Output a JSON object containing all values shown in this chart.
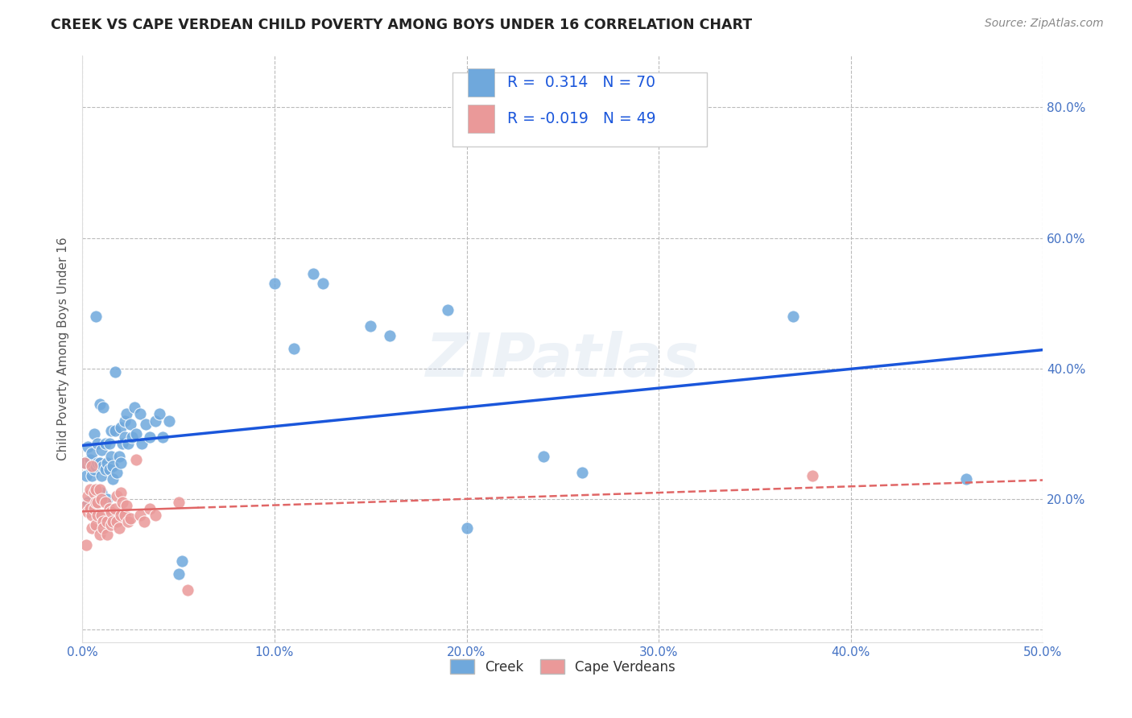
{
  "title": "CREEK VS CAPE VERDEAN CHILD POVERTY AMONG BOYS UNDER 16 CORRELATION CHART",
  "source": "Source: ZipAtlas.com",
  "ylabel": "Child Poverty Among Boys Under 16",
  "watermark": "ZIPatlas",
  "creek_R": 0.314,
  "creek_N": 70,
  "cape_R": -0.019,
  "cape_N": 49,
  "xlim": [
    0.0,
    0.5
  ],
  "ylim": [
    -0.02,
    0.88
  ],
  "xticks": [
    0.0,
    0.1,
    0.2,
    0.3,
    0.4,
    0.5
  ],
  "yticks": [
    0.0,
    0.2,
    0.4,
    0.6,
    0.8
  ],
  "xtick_labels": [
    "0.0%",
    "10.0%",
    "20.0%",
    "30.0%",
    "40.0%",
    "50.0%"
  ],
  "ytick_labels": [
    "",
    "20.0%",
    "40.0%",
    "60.0%",
    "80.0%"
  ],
  "creek_color": "#6fa8dc",
  "cape_color": "#ea9999",
  "creek_line_color": "#1a56db",
  "cape_line_color": "#e06666",
  "background_color": "#ffffff",
  "grid_color": "#bbbbbb",
  "title_color": "#222222",
  "source_color": "#888888",
  "creek_scatter": [
    [
      0.001,
      0.255
    ],
    [
      0.002,
      0.235
    ],
    [
      0.003,
      0.28
    ],
    [
      0.003,
      0.195
    ],
    [
      0.004,
      0.255
    ],
    [
      0.004,
      0.26
    ],
    [
      0.005,
      0.245
    ],
    [
      0.005,
      0.27
    ],
    [
      0.005,
      0.235
    ],
    [
      0.006,
      0.3
    ],
    [
      0.006,
      0.245
    ],
    [
      0.007,
      0.25
    ],
    [
      0.007,
      0.48
    ],
    [
      0.008,
      0.255
    ],
    [
      0.008,
      0.285
    ],
    [
      0.009,
      0.345
    ],
    [
      0.009,
      0.255
    ],
    [
      0.009,
      0.21
    ],
    [
      0.01,
      0.275
    ],
    [
      0.01,
      0.235
    ],
    [
      0.01,
      0.21
    ],
    [
      0.011,
      0.25
    ],
    [
      0.011,
      0.34
    ],
    [
      0.012,
      0.285
    ],
    [
      0.012,
      0.245
    ],
    [
      0.013,
      0.255
    ],
    [
      0.013,
      0.2
    ],
    [
      0.014,
      0.285
    ],
    [
      0.014,
      0.245
    ],
    [
      0.015,
      0.305
    ],
    [
      0.015,
      0.265
    ],
    [
      0.016,
      0.25
    ],
    [
      0.016,
      0.23
    ],
    [
      0.017,
      0.395
    ],
    [
      0.017,
      0.305
    ],
    [
      0.018,
      0.24
    ],
    [
      0.019,
      0.265
    ],
    [
      0.02,
      0.31
    ],
    [
      0.02,
      0.255
    ],
    [
      0.021,
      0.285
    ],
    [
      0.022,
      0.32
    ],
    [
      0.022,
      0.295
    ],
    [
      0.023,
      0.33
    ],
    [
      0.024,
      0.285
    ],
    [
      0.025,
      0.315
    ],
    [
      0.026,
      0.295
    ],
    [
      0.027,
      0.34
    ],
    [
      0.028,
      0.3
    ],
    [
      0.03,
      0.33
    ],
    [
      0.031,
      0.285
    ],
    [
      0.033,
      0.315
    ],
    [
      0.035,
      0.295
    ],
    [
      0.038,
      0.32
    ],
    [
      0.04,
      0.33
    ],
    [
      0.042,
      0.295
    ],
    [
      0.045,
      0.32
    ],
    [
      0.05,
      0.085
    ],
    [
      0.052,
      0.105
    ],
    [
      0.1,
      0.53
    ],
    [
      0.11,
      0.43
    ],
    [
      0.12,
      0.545
    ],
    [
      0.125,
      0.53
    ],
    [
      0.15,
      0.465
    ],
    [
      0.16,
      0.45
    ],
    [
      0.19,
      0.49
    ],
    [
      0.2,
      0.155
    ],
    [
      0.24,
      0.265
    ],
    [
      0.26,
      0.24
    ],
    [
      0.37,
      0.48
    ],
    [
      0.46,
      0.23
    ]
  ],
  "cape_scatter": [
    [
      0.001,
      0.255
    ],
    [
      0.002,
      0.13
    ],
    [
      0.002,
      0.19
    ],
    [
      0.003,
      0.18
    ],
    [
      0.003,
      0.205
    ],
    [
      0.004,
      0.215
    ],
    [
      0.004,
      0.185
    ],
    [
      0.005,
      0.25
    ],
    [
      0.005,
      0.175
    ],
    [
      0.005,
      0.155
    ],
    [
      0.006,
      0.21
    ],
    [
      0.006,
      0.185
    ],
    [
      0.007,
      0.215
    ],
    [
      0.007,
      0.16
    ],
    [
      0.007,
      0.195
    ],
    [
      0.008,
      0.195
    ],
    [
      0.008,
      0.175
    ],
    [
      0.009,
      0.215
    ],
    [
      0.009,
      0.145
    ],
    [
      0.01,
      0.2
    ],
    [
      0.01,
      0.175
    ],
    [
      0.011,
      0.165
    ],
    [
      0.011,
      0.155
    ],
    [
      0.012,
      0.195
    ],
    [
      0.013,
      0.165
    ],
    [
      0.013,
      0.145
    ],
    [
      0.014,
      0.185
    ],
    [
      0.015,
      0.16
    ],
    [
      0.015,
      0.18
    ],
    [
      0.016,
      0.165
    ],
    [
      0.017,
      0.185
    ],
    [
      0.018,
      0.205
    ],
    [
      0.018,
      0.165
    ],
    [
      0.019,
      0.155
    ],
    [
      0.02,
      0.21
    ],
    [
      0.02,
      0.175
    ],
    [
      0.021,
      0.195
    ],
    [
      0.022,
      0.175
    ],
    [
      0.023,
      0.19
    ],
    [
      0.024,
      0.165
    ],
    [
      0.025,
      0.17
    ],
    [
      0.028,
      0.26
    ],
    [
      0.03,
      0.175
    ],
    [
      0.032,
      0.165
    ],
    [
      0.035,
      0.185
    ],
    [
      0.038,
      0.175
    ],
    [
      0.05,
      0.195
    ],
    [
      0.055,
      0.06
    ],
    [
      0.38,
      0.235
    ]
  ]
}
